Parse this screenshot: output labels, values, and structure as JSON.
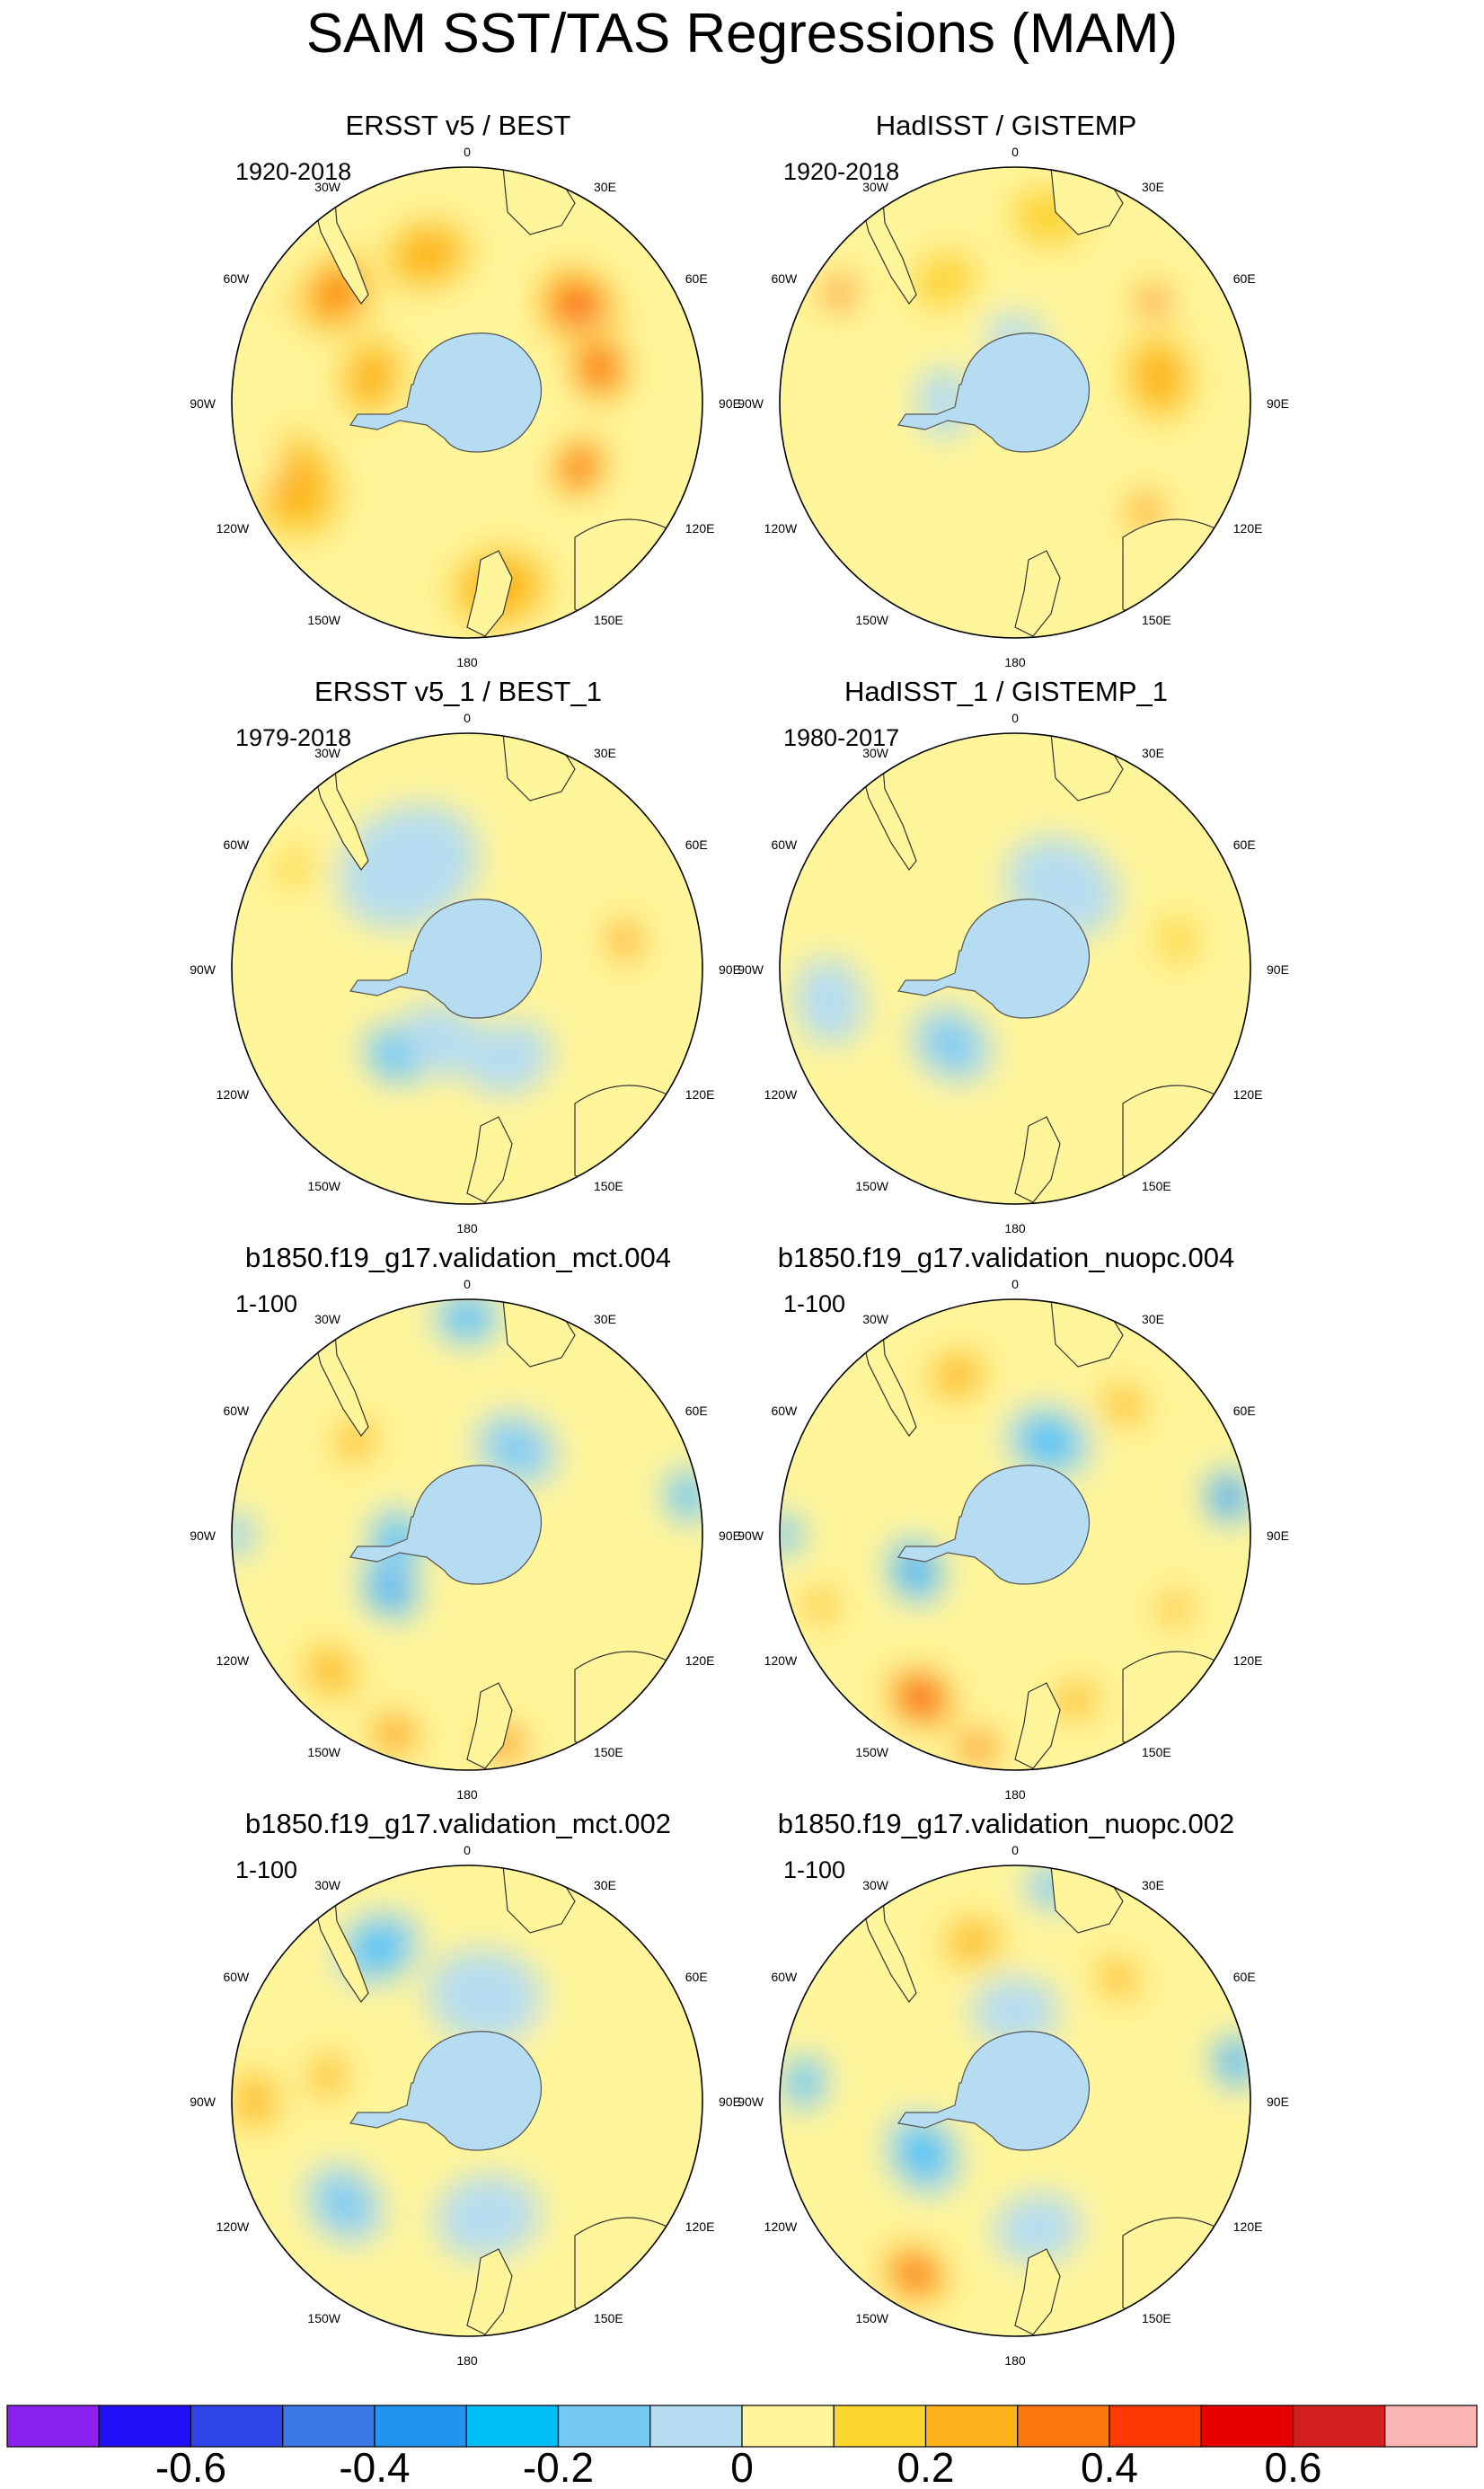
{
  "chart_data": {
    "type": "polar-contour-map",
    "title": "SAM SST/TAS Regressions (MAM)",
    "projection": "south polar stereographic",
    "longitude_labels": [
      "0",
      "30E",
      "60E",
      "90E",
      "120E",
      "150E",
      "180",
      "150W",
      "120W",
      "90W",
      "60W",
      "30W"
    ],
    "longitude_degrees": [
      0,
      30,
      60,
      90,
      120,
      150,
      180,
      -150,
      -120,
      -90,
      -60,
      -30
    ],
    "contour_levels": [
      -0.7,
      -0.6,
      -0.5,
      -0.4,
      -0.3,
      -0.2,
      -0.1,
      0,
      0.1,
      0.2,
      0.3,
      0.4,
      0.5,
      0.6,
      0.7
    ],
    "colorbar": {
      "colors": [
        "#8a21f0",
        "#1f10f5",
        "#2e45ea",
        "#3a78e8",
        "#1f95f0",
        "#00bdf5",
        "#76c9f0",
        "#b5dcf0",
        "#fff59a",
        "#fcd52f",
        "#fdb11a",
        "#fc780c",
        "#fc3a02",
        "#e70000",
        "#d21f1f",
        "#fdb4b4"
      ],
      "tick_labels": [
        "-0.6",
        "-0.4",
        "-0.2",
        "0",
        "0.2",
        "0.4",
        "0.6"
      ],
      "tick_values": [
        -0.6,
        -0.4,
        -0.2,
        0,
        0.2,
        0.4,
        0.6
      ],
      "range": [
        -0.8,
        0.8
      ]
    },
    "panels": [
      {
        "title": "ERSST v5 / BEST",
        "period": "1920-2018",
        "land_value": -0.05,
        "anomalies": [
          {
            "lon": -60,
            "r": 0.86,
            "value": 0.62,
            "spread": 0.07
          },
          {
            "lon": -50,
            "r": 0.72,
            "value": 0.38,
            "spread": 0.2
          },
          {
            "lon": -15,
            "r": 0.65,
            "value": 0.34,
            "spread": 0.22
          },
          {
            "lon": 50,
            "r": 0.62,
            "value": 0.45,
            "spread": 0.2
          },
          {
            "lon": 75,
            "r": 0.58,
            "value": 0.48,
            "spread": 0.16
          },
          {
            "lon": 120,
            "r": 0.55,
            "value": 0.45,
            "spread": 0.14
          },
          {
            "lon": 170,
            "r": 0.8,
            "value": 0.3,
            "spread": 0.25
          },
          {
            "lon": -115,
            "r": 0.82,
            "value": 0.28,
            "spread": 0.28
          },
          {
            "lon": -75,
            "r": 0.42,
            "value": 0.25,
            "spread": 0.2
          },
          {
            "lon": 175,
            "r": 0.42,
            "value": 0.12,
            "spread": 0.15
          },
          {
            "lon": -100,
            "r": 1.0,
            "value": 0.1,
            "spread": 0.2
          }
        ]
      },
      {
        "title": "HadISST / GISTEMP",
        "period": "1920-2018",
        "land_value": -0.05,
        "anomalies": [
          {
            "lon": -58,
            "r": 0.88,
            "value": 0.55,
            "spread": 0.08
          },
          {
            "lon": 55,
            "r": 0.72,
            "value": 0.45,
            "spread": 0.1
          },
          {
            "lon": 80,
            "r": 0.62,
            "value": 0.3,
            "spread": 0.22
          },
          {
            "lon": 130,
            "r": 0.72,
            "value": 0.4,
            "spread": 0.1
          },
          {
            "lon": 10,
            "r": 0.8,
            "value": 0.22,
            "spread": 0.22
          },
          {
            "lon": -30,
            "r": 0.6,
            "value": 0.2,
            "spread": 0.2
          },
          {
            "lon": 0,
            "r": 0.28,
            "value": -0.1,
            "spread": 0.1
          },
          {
            "lon": -90,
            "r": 0.3,
            "value": -0.1,
            "spread": 0.12
          },
          {
            "lon": -100,
            "r": 0.85,
            "value": 0.05,
            "spread": 0.25
          },
          {
            "lon": 160,
            "r": 0.85,
            "value": 0.15,
            "spread": 0.18
          }
        ]
      },
      {
        "title": "ERSST v5_1 / BEST_1",
        "period": "1979-2018",
        "land_value": -0.05,
        "anomalies": [
          {
            "lon": -60,
            "r": 0.85,
            "value": 0.2,
            "spread": 0.12
          },
          {
            "lon": 80,
            "r": 0.68,
            "value": 0.38,
            "spread": 0.1
          },
          {
            "lon": -140,
            "r": 0.48,
            "value": -0.28,
            "spread": 0.12
          },
          {
            "lon": -160,
            "r": 0.32,
            "value": -0.15,
            "spread": 0.15
          },
          {
            "lon": 155,
            "r": 0.42,
            "value": -0.12,
            "spread": 0.15
          },
          {
            "lon": 175,
            "r": 0.88,
            "value": 0.1,
            "spread": 0.2
          },
          {
            "lon": -90,
            "r": 0.88,
            "value": 0.1,
            "spread": 0.12
          },
          {
            "lon": 20,
            "r": 0.8,
            "value": 0.05,
            "spread": 0.15
          },
          {
            "lon": -30,
            "r": 0.5,
            "value": -0.08,
            "spread": 0.25
          }
        ]
      },
      {
        "title": "HadISST_1 / GISTEMP_1",
        "period": "1980-2017",
        "land_value": -0.05,
        "anomalies": [
          {
            "lon": 80,
            "r": 0.7,
            "value": 0.22,
            "spread": 0.14
          },
          {
            "lon": -140,
            "r": 0.42,
            "value": -0.18,
            "spread": 0.15
          },
          {
            "lon": -150,
            "r": 0.88,
            "value": 0.15,
            "spread": 0.2
          },
          {
            "lon": 170,
            "r": 0.9,
            "value": 0.12,
            "spread": 0.15
          },
          {
            "lon": -45,
            "r": 0.7,
            "value": 0.06,
            "spread": 0.2
          },
          {
            "lon": 30,
            "r": 0.4,
            "value": -0.08,
            "spread": 0.2
          },
          {
            "lon": -100,
            "r": 0.8,
            "value": -0.1,
            "spread": 0.15
          }
        ]
      },
      {
        "title": "b1850.f19_g17.validation_mct.004",
        "period": "1-100",
        "land_value": -0.05,
        "anomalies": [
          {
            "lon": -125,
            "r": 0.4,
            "value": -0.42,
            "spread": 0.12
          },
          {
            "lon": -95,
            "r": 0.3,
            "value": -0.28,
            "spread": 0.12
          },
          {
            "lon": -160,
            "r": 0.9,
            "value": 0.42,
            "spread": 0.12
          },
          {
            "lon": 170,
            "r": 0.9,
            "value": 0.5,
            "spread": 0.1
          },
          {
            "lon": -135,
            "r": 0.82,
            "value": 0.25,
            "spread": 0.15
          },
          {
            "lon": -50,
            "r": 0.62,
            "value": 0.3,
            "spread": 0.12
          },
          {
            "lon": 80,
            "r": 0.95,
            "value": -0.3,
            "spread": 0.1
          },
          {
            "lon": 0,
            "r": 0.92,
            "value": -0.25,
            "spread": 0.12
          },
          {
            "lon": 30,
            "r": 0.42,
            "value": -0.2,
            "spread": 0.15
          },
          {
            "lon": 100,
            "r": 0.55,
            "value": 0.08,
            "spread": 0.12
          },
          {
            "lon": -90,
            "r": 0.98,
            "value": -0.2,
            "spread": 0.08
          },
          {
            "lon": 150,
            "r": 0.65,
            "value": 0.1,
            "spread": 0.15
          }
        ]
      },
      {
        "title": "b1850.f19_g17.validation_nuopc.004",
        "period": "1-100",
        "land_value": -0.05,
        "anomalies": [
          {
            "lon": -150,
            "r": 0.8,
            "value": 0.55,
            "spread": 0.15
          },
          {
            "lon": -170,
            "r": 0.92,
            "value": 0.45,
            "spread": 0.1
          },
          {
            "lon": 160,
            "r": 0.75,
            "value": 0.35,
            "spread": 0.12
          },
          {
            "lon": -110,
            "r": 0.45,
            "value": -0.38,
            "spread": 0.12
          },
          {
            "lon": 80,
            "r": 0.92,
            "value": -0.45,
            "spread": 0.1
          },
          {
            "lon": -20,
            "r": 0.72,
            "value": 0.35,
            "spread": 0.15
          },
          {
            "lon": 40,
            "r": 0.72,
            "value": 0.3,
            "spread": 0.12
          },
          {
            "lon": 20,
            "r": 0.42,
            "value": -0.25,
            "spread": 0.15
          },
          {
            "lon": -90,
            "r": 0.98,
            "value": -0.3,
            "spread": 0.08
          },
          {
            "lon": -110,
            "r": 0.88,
            "value": 0.3,
            "spread": 0.1
          },
          {
            "lon": 115,
            "r": 0.75,
            "value": 0.3,
            "spread": 0.1
          }
        ]
      },
      {
        "title": "b1850.f19_g17.validation_mct.002",
        "period": "1-100",
        "land_value": -0.05,
        "anomalies": [
          {
            "lon": -90,
            "r": 0.9,
            "value": 0.35,
            "spread": 0.15
          },
          {
            "lon": -80,
            "r": 0.6,
            "value": 0.3,
            "spread": 0.12
          },
          {
            "lon": -30,
            "r": 0.75,
            "value": -0.25,
            "spread": 0.15
          },
          {
            "lon": -130,
            "r": 0.68,
            "value": -0.22,
            "spread": 0.15
          },
          {
            "lon": 10,
            "r": 0.45,
            "value": -0.15,
            "spread": 0.2
          },
          {
            "lon": 80,
            "r": 0.88,
            "value": 0.15,
            "spread": 0.15
          },
          {
            "lon": 170,
            "r": 0.5,
            "value": -0.1,
            "spread": 0.18
          },
          {
            "lon": 160,
            "r": 0.88,
            "value": 0.1,
            "spread": 0.15
          },
          {
            "lon": 60,
            "r": 0.5,
            "value": 0.12,
            "spread": 0.15
          }
        ]
      },
      {
        "title": "b1850.f19_g17.validation_nuopc.002",
        "period": "1-100",
        "land_value": -0.05,
        "anomalies": [
          {
            "lon": -150,
            "r": 0.85,
            "value": 0.45,
            "spread": 0.15
          },
          {
            "lon": -120,
            "r": 0.45,
            "value": -0.32,
            "spread": 0.15
          },
          {
            "lon": 80,
            "r": 0.95,
            "value": -0.42,
            "spread": 0.1
          },
          {
            "lon": -85,
            "r": 0.9,
            "value": -0.3,
            "spread": 0.1
          },
          {
            "lon": -15,
            "r": 0.7,
            "value": 0.3,
            "spread": 0.15
          },
          {
            "lon": 40,
            "r": 0.68,
            "value": 0.32,
            "spread": 0.12
          },
          {
            "lon": 10,
            "r": 0.92,
            "value": -0.18,
            "spread": 0.1
          },
          {
            "lon": 0,
            "r": 0.38,
            "value": -0.15,
            "spread": 0.15
          },
          {
            "lon": 130,
            "r": 0.65,
            "value": 0.15,
            "spread": 0.15
          },
          {
            "lon": 170,
            "r": 0.55,
            "value": -0.08,
            "spread": 0.15
          }
        ]
      }
    ]
  }
}
